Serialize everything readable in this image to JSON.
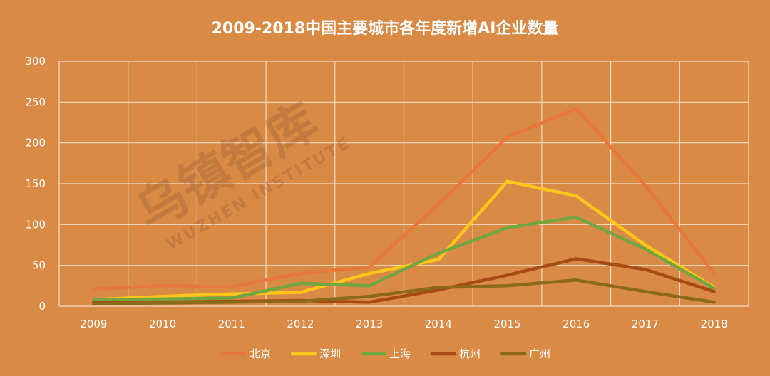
{
  "chart_data": {
    "type": "line",
    "title": "2009-2018中国主要城市各年度新增AI企业数量",
    "categories": [
      "2009",
      "2010",
      "2011",
      "2012",
      "2013",
      "2014",
      "2015",
      "2016",
      "2017",
      "2018"
    ],
    "yticks": [
      "0",
      "50",
      "100",
      "150",
      "200",
      "250",
      "300"
    ],
    "ylim": [
      0,
      300
    ],
    "grid": true,
    "legend_position": "bottom",
    "series": [
      {
        "name": "北京",
        "color": "#e8773a",
        "values": [
          21,
          25,
          24,
          40,
          48,
          125,
          207,
          242,
          148,
          40
        ]
      },
      {
        "name": "深圳",
        "color": "#ffc61a",
        "values": [
          8,
          12,
          15,
          17,
          40,
          57,
          153,
          135,
          75,
          23
        ]
      },
      {
        "name": "上海",
        "color": "#72a641",
        "values": [
          8,
          9,
          10,
          28,
          25,
          65,
          96,
          109,
          70,
          22
        ]
      },
      {
        "name": "杭州",
        "color": "#a84a14",
        "values": [
          5,
          5,
          6,
          7,
          5,
          20,
          38,
          58,
          45,
          18
        ]
      },
      {
        "name": "广州",
        "color": "#8b6a1a",
        "values": [
          3,
          4,
          5,
          6,
          12,
          23,
          25,
          32,
          18,
          5
        ]
      }
    ]
  },
  "watermark": {
    "logo": "乌镇智库",
    "sub": "WUZHEN INSTITUTE"
  }
}
